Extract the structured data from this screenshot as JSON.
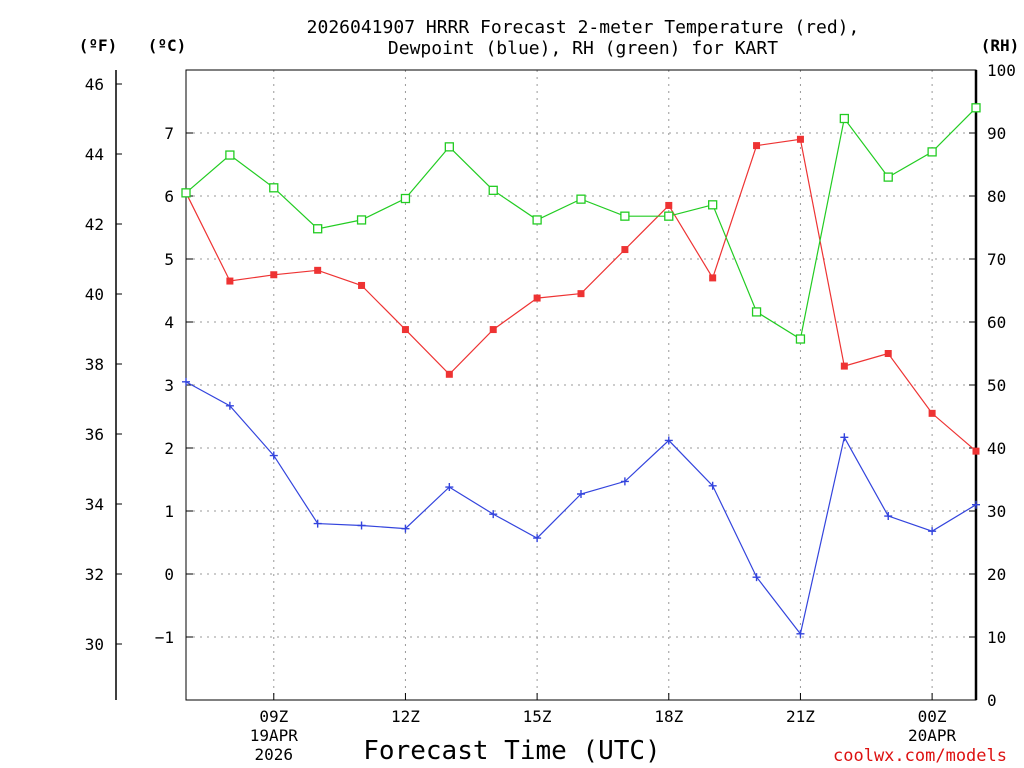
{
  "chart_data": {
    "type": "line",
    "title_line1": "2026041907 HRRR Forecast 2-meter Temperature (red),",
    "title_line2": "Dewpoint (blue), RH (green) for KART",
    "units": {
      "left_outer": "(ºF)",
      "left_inner": "(ºC)",
      "right": "(RH)"
    },
    "hours": [
      7,
      8,
      9,
      10,
      11,
      12,
      13,
      14,
      15,
      16,
      17,
      18,
      19,
      20,
      21,
      22,
      23,
      24,
      25
    ],
    "xlim": [
      7,
      25
    ],
    "x_ticks": [
      {
        "h": 9,
        "label": "09Z"
      },
      {
        "h": 12,
        "label": "12Z"
      },
      {
        "h": 15,
        "label": "15Z"
      },
      {
        "h": 18,
        "label": "18Z"
      },
      {
        "h": 21,
        "label": "21Z"
      },
      {
        "h": 24,
        "label": "00Z"
      }
    ],
    "date_labels": [
      {
        "h": 9,
        "line1": "19APR",
        "line2": "2026"
      },
      {
        "h": 24,
        "line1": "20APR",
        "line2": ""
      }
    ],
    "celsius_axis": {
      "ylim": [
        -2,
        8
      ],
      "ticks": [
        -1,
        0,
        1,
        2,
        3,
        4,
        5,
        6,
        7
      ]
    },
    "fahrenheit_axis": {
      "ylim": [
        28.4,
        46.4
      ],
      "ticks": [
        30,
        32,
        34,
        36,
        38,
        40,
        42,
        44,
        46
      ]
    },
    "rh_axis": {
      "ylim": [
        0,
        100
      ],
      "ticks": [
        0,
        10,
        20,
        30,
        40,
        50,
        60,
        70,
        80,
        90,
        100
      ]
    },
    "series": [
      {
        "name": "Temperature",
        "axis": "celsius",
        "color": "#ee3333",
        "marker": "filled-square",
        "values": [
          6.05,
          4.65,
          4.75,
          4.82,
          4.58,
          3.88,
          3.17,
          3.88,
          4.38,
          4.45,
          5.15,
          5.85,
          4.7,
          6.8,
          6.9,
          3.3,
          3.5,
          2.55,
          1.95
        ]
      },
      {
        "name": "Dewpoint",
        "axis": "celsius",
        "color": "#3344dd",
        "marker": "plus",
        "values": [
          3.05,
          2.67,
          1.88,
          0.8,
          0.77,
          0.72,
          1.38,
          0.95,
          0.57,
          1.27,
          1.47,
          2.12,
          1.4,
          -0.05,
          -0.95,
          2.17,
          0.92,
          0.68,
          1.1
        ]
      },
      {
        "name": "RH",
        "axis": "rh",
        "color": "#22cc22",
        "marker": "open-square",
        "values": [
          80.5,
          86.5,
          81.3,
          74.8,
          76.2,
          79.6,
          87.8,
          80.9,
          76.2,
          79.5,
          76.8,
          76.8,
          78.6,
          61.6,
          57.3,
          92.3,
          83.0,
          87.0,
          94.0
        ]
      }
    ],
    "xlabel": "Forecast Time (UTC)",
    "credit": "coolwx.com/models"
  }
}
